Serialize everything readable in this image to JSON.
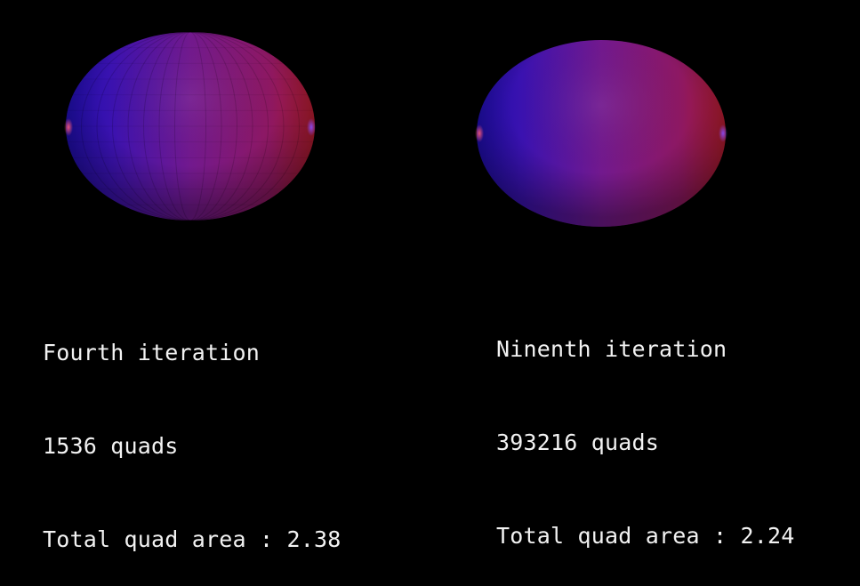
{
  "panels": [
    {
      "title": "Fourth iteration",
      "quads": "1536 quads",
      "area": "Total quad area : 2.38",
      "faceted": true
    },
    {
      "title": "Ninenth iteration",
      "quads": "393216 quads",
      "area": "Total quad area : 2.24",
      "faceted": false
    }
  ],
  "colors": {
    "background": "#000000",
    "blue_side": "#2a0fb0",
    "magenta_center": "#7a1a8c",
    "red_side": "#a0182e",
    "caption_text": "#f2f2f2"
  }
}
